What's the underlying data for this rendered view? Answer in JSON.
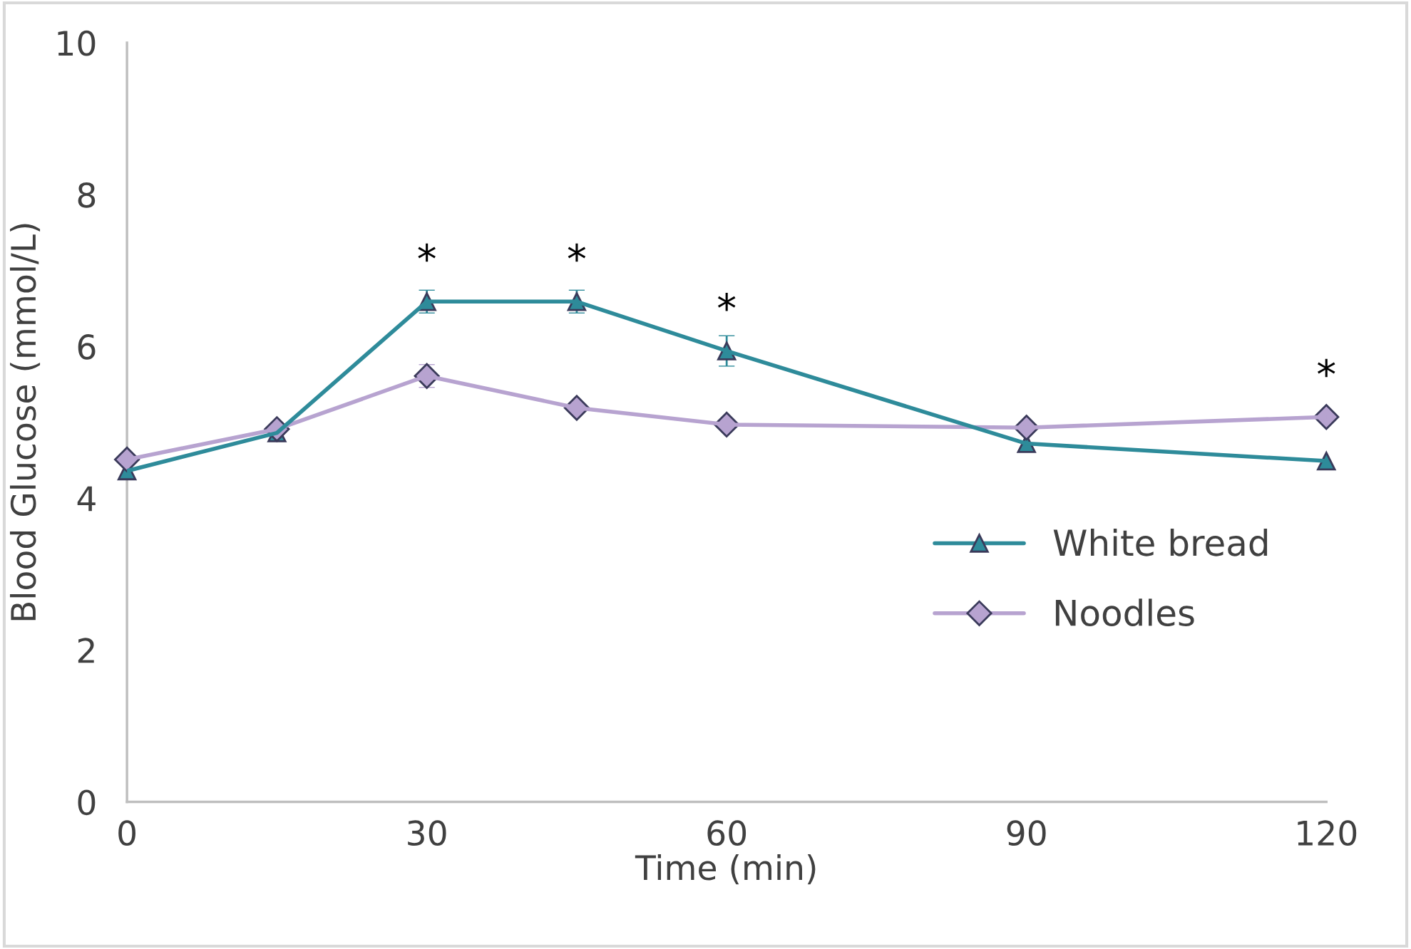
{
  "chart_data": {
    "type": "line",
    "xlabel": "Time (min)",
    "ylabel": "Blood Glucose (mmol/L)",
    "x": [
      0,
      15,
      30,
      45,
      60,
      90,
      120
    ],
    "series": [
      {
        "name": "White bread",
        "color": "#2e8b9a",
        "marker": "triangle",
        "values": [
          4.36,
          4.86,
          6.59,
          6.59,
          5.94,
          4.72,
          4.49
        ],
        "errors": [
          null,
          null,
          0.15,
          0.15,
          0.2,
          null,
          null
        ]
      },
      {
        "name": "Noodles",
        "color": "#b7a3d0",
        "marker": "diamond",
        "values": [
          4.51,
          4.91,
          5.61,
          5.19,
          4.97,
          4.93,
          5.07
        ],
        "errors": [
          null,
          null,
          0.15,
          null,
          null,
          null,
          null
        ]
      }
    ],
    "xlim": [
      0,
      120
    ],
    "xticks": [
      0,
      30,
      60,
      90,
      120
    ],
    "ylim": [
      0,
      10
    ],
    "yticks": [
      0,
      2,
      4,
      6,
      8,
      10
    ],
    "annotations": [
      {
        "text": "*",
        "x": 30,
        "y": 6.59
      },
      {
        "text": "*",
        "x": 45,
        "y": 6.59
      },
      {
        "text": "*",
        "x": 60,
        "y": 5.94
      },
      {
        "text": "*",
        "x": 120,
        "y": 5.07
      }
    ],
    "legend": "bottom right",
    "grid": false,
    "line_style": "solid"
  }
}
